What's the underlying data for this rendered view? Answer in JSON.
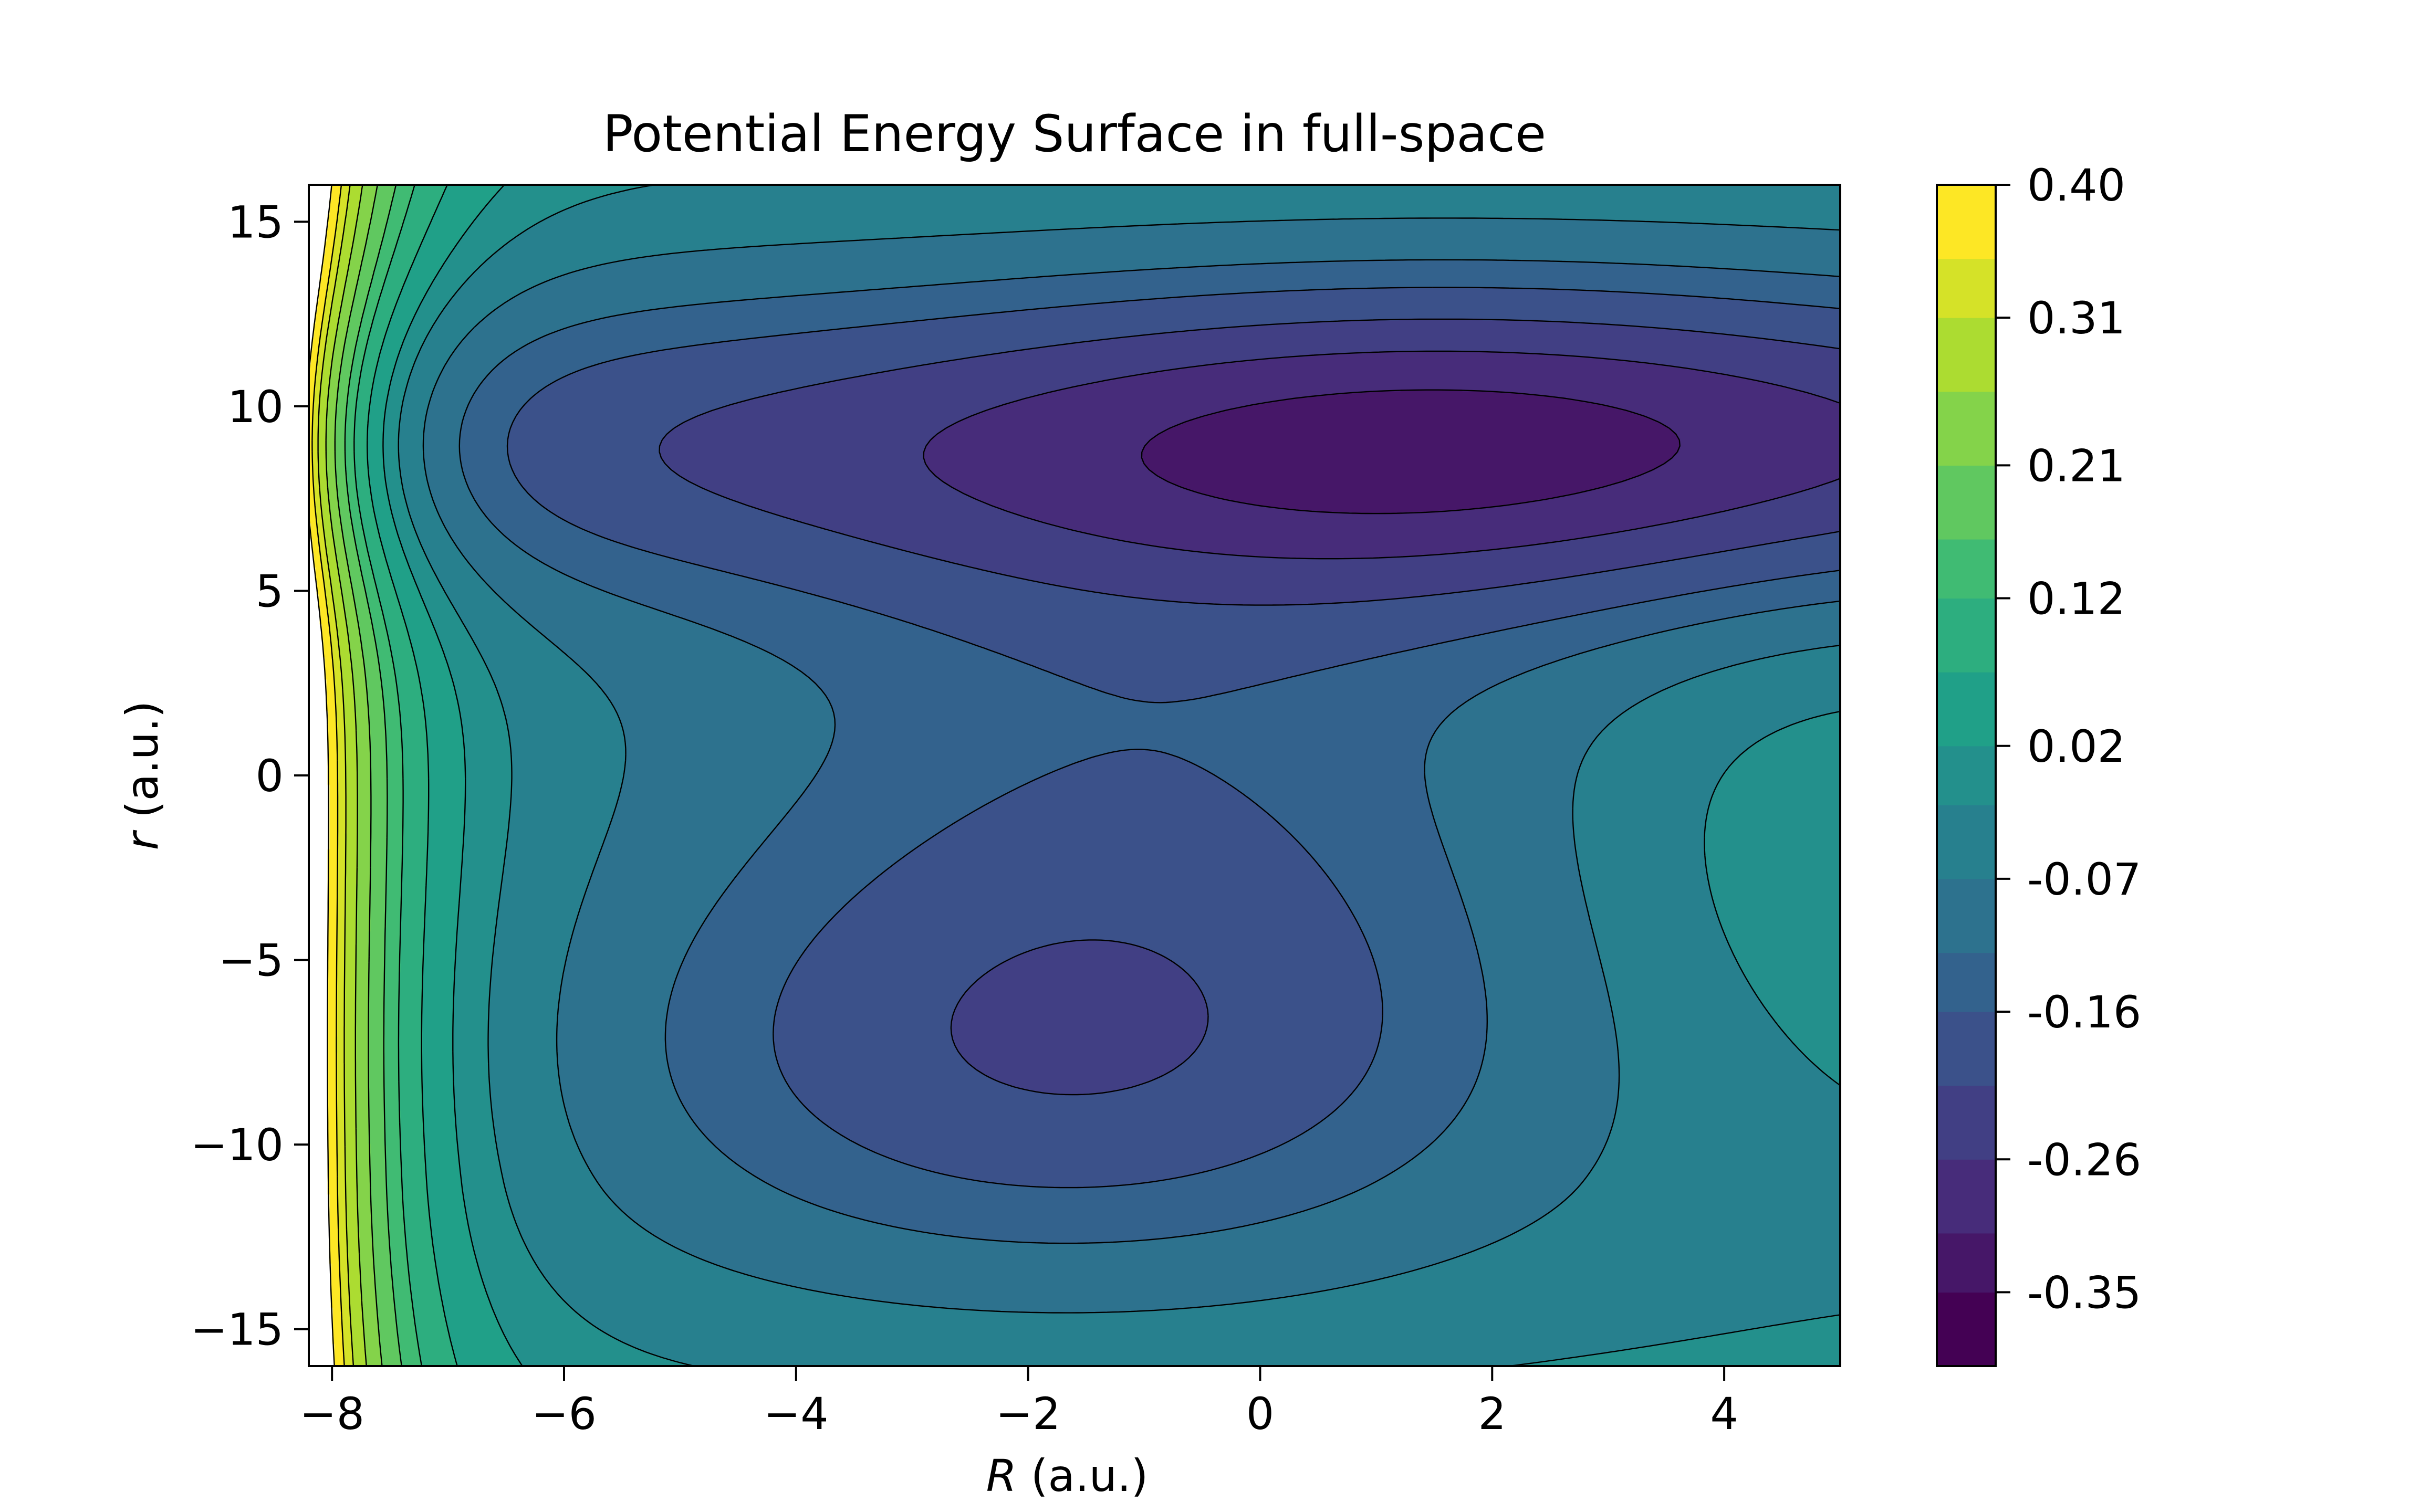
{
  "chart_data": {
    "type": "contour",
    "title": "Potential Energy Surface in full-space",
    "xlabel": {
      "italic": "R",
      "rest": " (a.u.)"
    },
    "ylabel": {
      "italic": "r",
      "rest": " (a.u.)"
    },
    "xlim": [
      -8.2,
      5
    ],
    "ylim": [
      -16,
      16
    ],
    "xticks": [
      {
        "value": -8,
        "label": "−8"
      },
      {
        "value": -6,
        "label": "−6"
      },
      {
        "value": -4,
        "label": "−4"
      },
      {
        "value": -2,
        "label": "−2"
      },
      {
        "value": 0,
        "label": "0"
      },
      {
        "value": 2,
        "label": "2"
      },
      {
        "value": 4,
        "label": "4"
      }
    ],
    "yticks": [
      {
        "value": -15,
        "label": "−15"
      },
      {
        "value": -10,
        "label": "−10"
      },
      {
        "value": -5,
        "label": "−5"
      },
      {
        "value": 0,
        "label": "0"
      },
      {
        "value": 5,
        "label": "5"
      },
      {
        "value": 10,
        "label": "10"
      },
      {
        "value": 15,
        "label": "15"
      }
    ],
    "colorbar": {
      "colormap": "viridis",
      "range": [
        -0.4,
        0.4
      ],
      "levels": [
        -0.4,
        -0.35,
        -0.31,
        -0.26,
        -0.21,
        -0.16,
        -0.12,
        -0.07,
        -0.02,
        0.02,
        0.07,
        0.12,
        0.16,
        0.21,
        0.26,
        0.31,
        0.35,
        0.4
      ],
      "ticks": [
        {
          "value": -0.35,
          "label": "-0.35"
        },
        {
          "value": -0.26,
          "label": "-0.26"
        },
        {
          "value": -0.16,
          "label": "-0.16"
        },
        {
          "value": -0.07,
          "label": "-0.07"
        },
        {
          "value": 0.02,
          "label": "0.02"
        },
        {
          "value": 0.12,
          "label": "0.12"
        },
        {
          "value": 0.21,
          "label": "0.21"
        },
        {
          "value": 0.31,
          "label": "0.31"
        },
        {
          "value": 0.4,
          "label": "0.40"
        }
      ]
    },
    "features": {
      "upper_well": {
        "R": 1.7,
        "r": 9,
        "min_level": -0.35
      },
      "lower_well": {
        "R": -1.7,
        "r": -8,
        "min_level": -0.26
      },
      "repulsive_wall": "R near -8"
    }
  }
}
